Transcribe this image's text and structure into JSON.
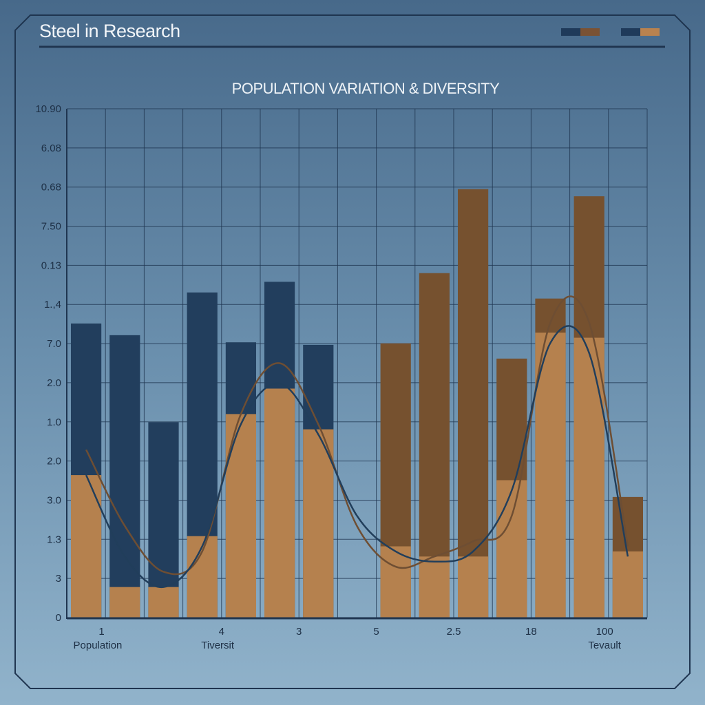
{
  "header": {
    "title": "Steel in Research"
  },
  "legend": [
    {
      "colors": [
        "#1f3a5a",
        "#7a5234"
      ]
    },
    {
      "colors": [
        "#1f3a5a",
        "#b9824f"
      ]
    }
  ],
  "colors": {
    "blue_bar": "#223e5d",
    "brown_bar": "#76512f",
    "tan_fill": "#b5814e",
    "brown_line": "#6e4e33",
    "blue_line": "#213e5b",
    "grid": "#1f3550"
  },
  "chart_data": {
    "type": "bar",
    "title": "POPULATION VARIATION & DIVERSITY",
    "ylim": [
      0,
      100
    ],
    "ytick_labels": [
      "10.90",
      "6.08",
      "0.68",
      "7.50",
      "0.13",
      "1.,4",
      "7.0",
      "2.0",
      "1.0",
      "2.0",
      "3.0",
      "1.3",
      "3",
      "0"
    ],
    "xtick_labels": [
      {
        "label": "1",
        "slot": 0.4
      },
      {
        "label": "4",
        "slot": 3.5
      },
      {
        "label": "3",
        "slot": 5.5
      },
      {
        "label": "5",
        "slot": 7.5
      },
      {
        "label": "2.5",
        "slot": 9.5
      },
      {
        "label": "18",
        "slot": 11.5
      },
      {
        "label": "100",
        "slot": 13.4
      }
    ],
    "xgroup_labels": [
      {
        "label": "Population",
        "slot": 0.3
      },
      {
        "label": "Tiversit",
        "slot": 3.4
      },
      {
        "label": "Tevault",
        "slot": 13.4
      }
    ],
    "bars": [
      {
        "value": 57.8,
        "fill": 28,
        "color": "blue"
      },
      {
        "value": 55.5,
        "fill": 6,
        "color": "blue"
      },
      {
        "value": 38.4,
        "fill": 6,
        "color": "blue"
      },
      {
        "value": 63.9,
        "fill": 16,
        "color": "blue"
      },
      {
        "value": 54.1,
        "fill": 40,
        "color": "blue"
      },
      {
        "value": 66.0,
        "fill": 45,
        "color": "blue"
      },
      {
        "value": 53.6,
        "fill": 37,
        "color": "blue"
      },
      {
        "value": 0,
        "fill": 0,
        "color": "blue"
      },
      {
        "value": 53.9,
        "fill": 14,
        "color": "brown"
      },
      {
        "value": 67.7,
        "fill": 12,
        "color": "brown"
      },
      {
        "value": 84.2,
        "fill": 12,
        "color": "brown"
      },
      {
        "value": 50.9,
        "fill": 27,
        "color": "brown"
      },
      {
        "value": 62.7,
        "fill": 56,
        "color": "brown"
      },
      {
        "value": 82.8,
        "fill": 55,
        "color": "brown"
      },
      {
        "value": 23.7,
        "fill": 13,
        "color": "brown"
      }
    ],
    "lines": [
      {
        "color": "brown",
        "points": [
          [
            0,
            33
          ],
          [
            1,
            18
          ],
          [
            2,
            9
          ],
          [
            3,
            13
          ],
          [
            4,
            40
          ],
          [
            5,
            50
          ],
          [
            6,
            38
          ],
          [
            7,
            18
          ],
          [
            8,
            10
          ],
          [
            9,
            12
          ],
          [
            10,
            15
          ],
          [
            11,
            20
          ],
          [
            12,
            58
          ],
          [
            13,
            58
          ],
          [
            14,
            14
          ]
        ]
      },
      {
        "color": "blue",
        "points": [
          [
            0,
            28
          ],
          [
            1,
            12
          ],
          [
            2,
            6
          ],
          [
            3,
            14
          ],
          [
            4,
            38
          ],
          [
            5,
            46
          ],
          [
            6,
            36
          ],
          [
            7,
            20
          ],
          [
            8,
            13
          ],
          [
            9,
            11
          ],
          [
            10,
            13
          ],
          [
            11,
            25
          ],
          [
            12,
            54
          ],
          [
            13,
            52
          ],
          [
            14,
            12
          ]
        ]
      }
    ]
  }
}
